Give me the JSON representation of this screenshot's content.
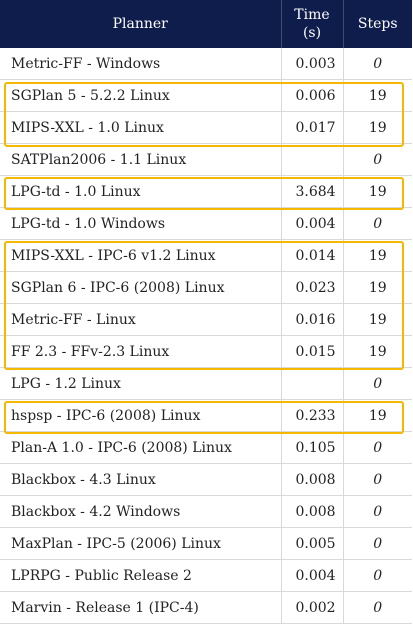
{
  "header": {
    "planner": "Planner",
    "time": "Time (s)",
    "steps": "Steps"
  },
  "rows": [
    {
      "planner": "Metric-FF - Windows",
      "time": "0.003",
      "steps": "0",
      "highlighted": false
    },
    {
      "planner": "SGPlan 5 - 5.2.2 Linux",
      "time": "0.006",
      "steps": "19",
      "highlighted": true
    },
    {
      "planner": "MIPS-XXL - 1.0 Linux",
      "time": "0.017",
      "steps": "19",
      "highlighted": true
    },
    {
      "planner": "SATPlan2006 - 1.1 Linux",
      "time": "",
      "steps": "0",
      "highlighted": false
    },
    {
      "planner": "LPG-td - 1.0 Linux",
      "time": "3.684",
      "steps": "19",
      "highlighted": true
    },
    {
      "planner": "LPG-td - 1.0 Windows",
      "time": "0.004",
      "steps": "0",
      "highlighted": false
    },
    {
      "planner": "MIPS-XXL - IPC-6 v1.2 Linux",
      "time": "0.014",
      "steps": "19",
      "highlighted": true
    },
    {
      "planner": "SGPlan 6 - IPC-6 (2008) Linux",
      "time": "0.023",
      "steps": "19",
      "highlighted": true
    },
    {
      "planner": "Metric-FF - Linux",
      "time": "0.016",
      "steps": "19",
      "highlighted": true
    },
    {
      "planner": "FF 2.3 - FFv-2.3 Linux",
      "time": "0.015",
      "steps": "19",
      "highlighted": true
    },
    {
      "planner": "LPG - 1.2 Linux",
      "time": "",
      "steps": "0",
      "highlighted": false
    },
    {
      "planner": "hspsp - IPC-6 (2008) Linux",
      "time": "0.233",
      "steps": "19",
      "highlighted": true
    },
    {
      "planner": "Plan-A 1.0 - IPC-6 (2008) Linux",
      "time": "0.105",
      "steps": "0",
      "highlighted": false
    },
    {
      "planner": "Blackbox - 4.3 Linux",
      "time": "0.008",
      "steps": "0",
      "highlighted": false
    },
    {
      "planner": "Blackbox - 4.2 Windows",
      "time": "0.008",
      "steps": "0",
      "highlighted": false
    },
    {
      "planner": "MaxPlan - IPC-5 (2006) Linux",
      "time": "0.005",
      "steps": "0",
      "highlighted": false
    },
    {
      "planner": "LPRPG - Public Release 2",
      "time": "0.004",
      "steps": "0",
      "highlighted": false
    },
    {
      "planner": "Marvin - Release 1 (IPC-4)",
      "time": "0.002",
      "steps": "0",
      "highlighted": false
    }
  ],
  "colors": {
    "header_bg": "#0f1d4d",
    "highlight_border": "#f5b800"
  }
}
